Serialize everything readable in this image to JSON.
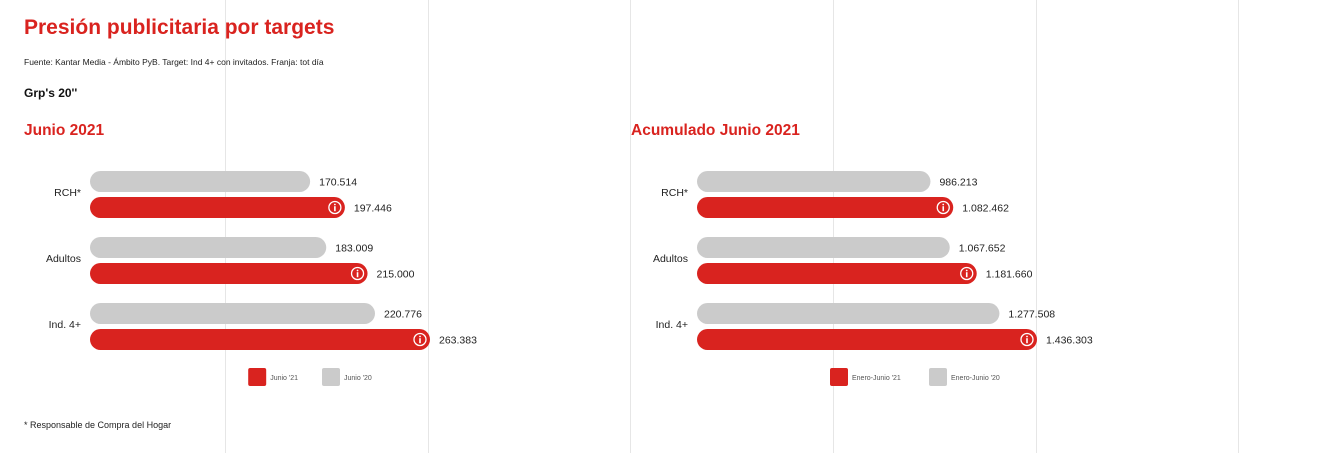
{
  "header": {
    "title": "Presión publicitaria por targets",
    "source": "Fuente: Kantar Media - Ámbito PyB. Target: Ind 4+ con invitados. Franja: tot día",
    "unit": "Grp's 20''"
  },
  "footnote": "* Responsable de Compra del Hogar",
  "colors": {
    "current": "#d9231f",
    "previous": "#cbcbcb",
    "title": "#d9231f"
  },
  "chart_data": [
    {
      "type": "bar",
      "orientation": "horizontal",
      "title": "Junio 2021",
      "categories": [
        "RCH*",
        "Adultos",
        "Ind. 4+"
      ],
      "series": [
        {
          "name": "Junio '20",
          "values": [
            170514,
            183009,
            220776
          ],
          "labels": [
            "170.514",
            "183.009",
            "220.776"
          ],
          "color": "#cbcbcb"
        },
        {
          "name": "Junio '21",
          "values": [
            197446,
            215000,
            263383
          ],
          "labels": [
            "197.446",
            "215.000",
            "263.383"
          ],
          "color": "#d9231f"
        }
      ],
      "legend": [
        "Junio '21",
        "Junio '20"
      ],
      "legend_position": "bottom",
      "xlim": [
        0,
        263383
      ]
    },
    {
      "type": "bar",
      "orientation": "horizontal",
      "title": "Acumulado Junio 2021",
      "categories": [
        "RCH*",
        "Adultos",
        "Ind. 4+"
      ],
      "series": [
        {
          "name": "Enero-Junio '20",
          "values": [
            986213,
            1067652,
            1277508
          ],
          "labels": [
            "986.213",
            "1.067.652",
            "1.277.508"
          ],
          "color": "#cbcbcb"
        },
        {
          "name": "Enero-Junio '21",
          "values": [
            1082462,
            1181660,
            1436303
          ],
          "labels": [
            "1.082.462",
            "1.181.660",
            "1.436.303"
          ],
          "color": "#d9231f"
        }
      ],
      "legend": [
        "Enero-Junio '21",
        "Enero-Junio '20"
      ],
      "legend_position": "bottom",
      "xlim": [
        0,
        1436303
      ]
    }
  ]
}
